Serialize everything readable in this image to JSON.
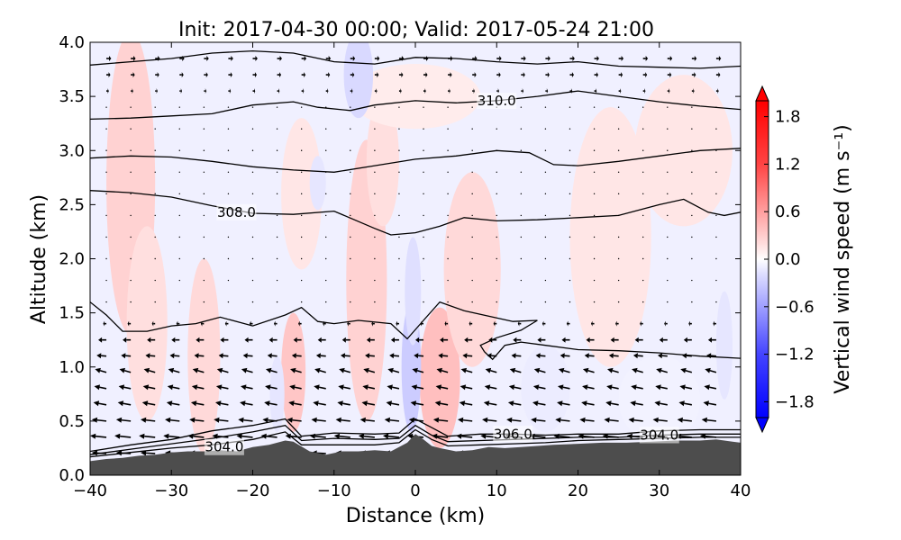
{
  "chart_data": {
    "type": "contour",
    "title": "Init: 2017-04-30 00:00; Valid: 2017-05-24 21:00",
    "xlabel": "Distance (km)",
    "ylabel": "Altitude (km)",
    "xlim": [
      -40,
      40
    ],
    "ylim": [
      0.0,
      4.0
    ],
    "x_ticks": [
      -40,
      -30,
      -20,
      -10,
      0,
      10,
      20,
      30,
      40
    ],
    "x_tick_labels": [
      "−40",
      "−30",
      "−20",
      "−10",
      "0",
      "10",
      "20",
      "30",
      "40"
    ],
    "y_ticks": [
      0.0,
      0.5,
      1.0,
      1.5,
      2.0,
      2.5,
      3.0,
      3.5,
      4.0
    ],
    "y_tick_labels": [
      "0.0",
      "0.5",
      "1.0",
      "1.5",
      "2.0",
      "2.5",
      "3.0",
      "3.5",
      "4.0"
    ],
    "colorbar": {
      "label": "Vertical wind speed (m s⁻¹)",
      "range": [
        -2.0,
        2.0
      ],
      "ticks": [
        1.8,
        1.2,
        0.6,
        0.0,
        -0.6,
        -1.2,
        -1.8
      ],
      "tick_labels": [
        "1.8",
        "1.2",
        "0.6",
        "0.0",
        "−0.6",
        "−1.2",
        "−1.8"
      ],
      "colormap": "bwr",
      "extend": "both"
    },
    "colors": {
      "terrain": "#4d4d4d",
      "positive": "#ff0000",
      "negative": "#0000ff",
      "neutral": "#ffffff"
    },
    "contour_labels": [
      {
        "text": "310.0",
        "x": 10,
        "y": 3.46
      },
      {
        "text": "308.0",
        "x": -22,
        "y": 2.43
      },
      {
        "text": "306.0",
        "x": 12,
        "y": 0.38
      },
      {
        "text": "304.0",
        "x": -23.5,
        "y": 0.26
      },
      {
        "text": "304.0",
        "x": 30,
        "y": 0.37
      }
    ],
    "isentropes": [
      {
        "level": "top",
        "points": [
          [
            -40,
            3.79
          ],
          [
            -35,
            3.82
          ],
          [
            -30,
            3.85
          ],
          [
            -25,
            3.9
          ],
          [
            -20,
            3.92
          ],
          [
            -15,
            3.9
          ],
          [
            -10,
            3.82
          ],
          [
            -5,
            3.8
          ],
          [
            0,
            3.86
          ],
          [
            5,
            3.85
          ],
          [
            10,
            3.82
          ],
          [
            15,
            3.8
          ],
          [
            20,
            3.82
          ],
          [
            25,
            3.78
          ],
          [
            30,
            3.77
          ],
          [
            35,
            3.76
          ],
          [
            40,
            3.78
          ]
        ]
      },
      {
        "level": "310.0",
        "points": [
          [
            -40,
            3.29
          ],
          [
            -35,
            3.3
          ],
          [
            -30,
            3.32
          ],
          [
            -25,
            3.34
          ],
          [
            -20,
            3.42
          ],
          [
            -15,
            3.45
          ],
          [
            -12,
            3.4
          ],
          [
            -8,
            3.37
          ],
          [
            -5,
            3.42
          ],
          [
            0,
            3.46
          ],
          [
            5,
            3.44
          ],
          [
            10,
            3.46
          ],
          [
            15,
            3.5
          ],
          [
            20,
            3.55
          ],
          [
            25,
            3.5
          ],
          [
            30,
            3.45
          ],
          [
            35,
            3.41
          ],
          [
            40,
            3.38
          ]
        ]
      },
      {
        "level": "309.0",
        "points": [
          [
            -40,
            2.93
          ],
          [
            -35,
            2.95
          ],
          [
            -30,
            2.94
          ],
          [
            -25,
            2.9
          ],
          [
            -20,
            2.85
          ],
          [
            -15,
            2.82
          ],
          [
            -10,
            2.8
          ],
          [
            -5,
            2.86
          ],
          [
            0,
            2.92
          ],
          [
            5,
            2.95
          ],
          [
            10,
            3.0
          ],
          [
            14,
            2.98
          ],
          [
            17,
            2.87
          ],
          [
            20,
            2.86
          ],
          [
            25,
            2.9
          ],
          [
            30,
            2.95
          ],
          [
            35,
            3.0
          ],
          [
            40,
            3.02
          ]
        ]
      },
      {
        "level": "308.0",
        "points": [
          [
            -40,
            2.63
          ],
          [
            -35,
            2.61
          ],
          [
            -30,
            2.57
          ],
          [
            -25,
            2.49
          ],
          [
            -20,
            2.42
          ],
          [
            -15,
            2.41
          ],
          [
            -10,
            2.44
          ],
          [
            -5,
            2.28
          ],
          [
            -3,
            2.22
          ],
          [
            0,
            2.24
          ],
          [
            3,
            2.3
          ],
          [
            6,
            2.38
          ],
          [
            10,
            2.35
          ],
          [
            15,
            2.36
          ],
          [
            20,
            2.38
          ],
          [
            25,
            2.4
          ],
          [
            30,
            2.5
          ],
          [
            33,
            2.55
          ],
          [
            36,
            2.43
          ],
          [
            38,
            2.4
          ],
          [
            40,
            2.43
          ]
        ]
      },
      {
        "level": "307.0",
        "points": [
          [
            -40,
            1.6
          ],
          [
            -38,
            1.48
          ],
          [
            -36,
            1.33
          ],
          [
            -33,
            1.33
          ],
          [
            -30,
            1.38
          ],
          [
            -27,
            1.4
          ],
          [
            -24,
            1.46
          ],
          [
            -20,
            1.38
          ],
          [
            -16,
            1.48
          ],
          [
            -14,
            1.55
          ],
          [
            -12,
            1.42
          ],
          [
            -10,
            1.4
          ],
          [
            -7,
            1.43
          ],
          [
            -3,
            1.4
          ],
          [
            -1,
            1.26
          ],
          [
            1,
            1.43
          ],
          [
            3,
            1.6
          ],
          [
            6,
            1.52
          ],
          [
            9,
            1.47
          ],
          [
            12,
            1.42
          ],
          [
            15,
            1.43
          ],
          [
            13,
            1.34
          ],
          [
            10,
            1.27
          ],
          [
            8,
            1.2
          ],
          [
            8.5,
            1.14
          ]
        ]
      },
      {
        "level": "306.5",
        "points": [
          [
            8.5,
            1.14
          ],
          [
            9.5,
            1.07
          ],
          [
            11,
            1.2
          ],
          [
            13,
            1.23
          ],
          [
            16,
            1.2
          ],
          [
            20,
            1.16
          ],
          [
            25,
            1.15
          ],
          [
            30,
            1.13
          ],
          [
            35,
            1.1
          ],
          [
            40,
            1.08
          ]
        ]
      },
      {
        "level": "306.0",
        "points": [
          [
            -40,
            0.22
          ],
          [
            -35,
            0.28
          ],
          [
            -30,
            0.33
          ],
          [
            -25,
            0.41
          ],
          [
            -20,
            0.46
          ],
          [
            -16,
            0.52
          ],
          [
            -14,
            0.36
          ],
          [
            -10,
            0.39
          ],
          [
            -5,
            0.38
          ],
          [
            -2,
            0.39
          ],
          [
            0,
            0.52
          ],
          [
            2,
            0.44
          ],
          [
            4,
            0.36
          ],
          [
            8,
            0.38
          ],
          [
            12,
            0.38
          ],
          [
            16,
            0.37
          ],
          [
            20,
            0.38
          ],
          [
            25,
            0.38
          ],
          [
            30,
            0.41
          ],
          [
            35,
            0.42
          ],
          [
            40,
            0.42
          ]
        ]
      },
      {
        "level": "305.0",
        "points": [
          [
            -40,
            0.19
          ],
          [
            -35,
            0.24
          ],
          [
            -30,
            0.29
          ],
          [
            -25,
            0.34
          ],
          [
            -20,
            0.4
          ],
          [
            -16,
            0.46
          ],
          [
            -14,
            0.32
          ],
          [
            -10,
            0.34
          ],
          [
            -5,
            0.33
          ],
          [
            -2,
            0.34
          ],
          [
            0,
            0.46
          ],
          [
            2,
            0.37
          ],
          [
            4,
            0.31
          ],
          [
            8,
            0.32
          ],
          [
            12,
            0.33
          ],
          [
            16,
            0.34
          ],
          [
            20,
            0.35
          ],
          [
            25,
            0.35
          ],
          [
            30,
            0.37
          ],
          [
            35,
            0.38
          ],
          [
            40,
            0.38
          ]
        ]
      },
      {
        "level": "304.0",
        "points": [
          [
            -40,
            0.17
          ],
          [
            -35,
            0.21
          ],
          [
            -30,
            0.25
          ],
          [
            -25,
            0.28
          ],
          [
            -20,
            0.33
          ],
          [
            -16,
            0.4
          ],
          [
            -14,
            0.28
          ],
          [
            -10,
            0.28
          ],
          [
            -5,
            0.28
          ],
          [
            -2,
            0.3
          ],
          [
            0,
            0.42
          ],
          [
            2,
            0.33
          ],
          [
            4,
            0.27
          ],
          [
            8,
            0.28
          ],
          [
            12,
            0.29
          ],
          [
            16,
            0.3
          ],
          [
            20,
            0.32
          ],
          [
            25,
            0.33
          ],
          [
            30,
            0.34
          ],
          [
            35,
            0.35
          ],
          [
            40,
            0.35
          ]
        ]
      }
    ],
    "terrain": [
      [
        -40,
        0.13
      ],
      [
        -38,
        0.15
      ],
      [
        -36,
        0.16
      ],
      [
        -34,
        0.18
      ],
      [
        -32,
        0.19
      ],
      [
        -30,
        0.21
      ],
      [
        -28,
        0.22
      ],
      [
        -26,
        0.22
      ],
      [
        -24,
        0.23
      ],
      [
        -22,
        0.22
      ],
      [
        -20,
        0.26
      ],
      [
        -18,
        0.28
      ],
      [
        -16,
        0.32
      ],
      [
        -15,
        0.31
      ],
      [
        -13,
        0.22
      ],
      [
        -11,
        0.19
      ],
      [
        -9,
        0.22
      ],
      [
        -7,
        0.22
      ],
      [
        -5,
        0.23
      ],
      [
        -3,
        0.22
      ],
      [
        -1,
        0.3
      ],
      [
        0,
        0.38
      ],
      [
        1,
        0.33
      ],
      [
        2,
        0.27
      ],
      [
        3,
        0.25
      ],
      [
        5,
        0.22
      ],
      [
        7,
        0.23
      ],
      [
        9,
        0.26
      ],
      [
        11,
        0.25
      ],
      [
        13,
        0.26
      ],
      [
        15,
        0.27
      ],
      [
        17,
        0.28
      ],
      [
        20,
        0.29
      ],
      [
        23,
        0.3
      ],
      [
        26,
        0.3
      ],
      [
        29,
        0.31
      ],
      [
        32,
        0.32
      ],
      [
        35,
        0.32
      ],
      [
        37,
        0.33
      ],
      [
        39,
        0.31
      ],
      [
        40,
        0.3
      ]
    ],
    "w_regions": [
      {
        "w": 0.35,
        "cx": -35,
        "cy": 2.7,
        "rx": 3,
        "ry": 1.4
      },
      {
        "w": 0.25,
        "cx": -33,
        "cy": 1.4,
        "rx": 2.5,
        "ry": 0.9
      },
      {
        "w": 0.3,
        "cx": -26,
        "cy": 1.1,
        "rx": 2.0,
        "ry": 0.9
      },
      {
        "w": 0.45,
        "cx": -15,
        "cy": 0.95,
        "rx": 1.5,
        "ry": 0.55
      },
      {
        "w": 0.2,
        "cx": -14,
        "cy": 2.6,
        "rx": 2.5,
        "ry": 0.7
      },
      {
        "w": 0.35,
        "cx": -6,
        "cy": 1.8,
        "rx": 2.5,
        "ry": 1.3
      },
      {
        "w": 0.25,
        "cx": -4,
        "cy": 2.9,
        "rx": 2.0,
        "ry": 0.6
      },
      {
        "w": 0.5,
        "cx": 3,
        "cy": 0.9,
        "rx": 2.5,
        "ry": 0.65
      },
      {
        "w": 0.3,
        "cx": 7,
        "cy": 1.9,
        "rx": 3.5,
        "ry": 0.9
      },
      {
        "w": 0.2,
        "cx": 24,
        "cy": 2.2,
        "rx": 5,
        "ry": 1.2
      },
      {
        "w": 0.15,
        "cx": 0,
        "cy": 3.5,
        "rx": 8,
        "ry": 0.3
      },
      {
        "w": 0.2,
        "cx": 33,
        "cy": 3.0,
        "rx": 6,
        "ry": 0.7
      },
      {
        "w": -0.4,
        "cx": -0.5,
        "cy": 1.0,
        "rx": 1.2,
        "ry": 0.6
      },
      {
        "w": -0.25,
        "cx": -0.3,
        "cy": 1.7,
        "rx": 1.0,
        "ry": 0.5
      },
      {
        "w": -0.3,
        "cx": -7,
        "cy": 3.7,
        "rx": 1.8,
        "ry": 0.4
      },
      {
        "w": -0.2,
        "cx": -12,
        "cy": 2.7,
        "rx": 1.0,
        "ry": 0.25
      },
      {
        "w": -0.2,
        "cx": -17,
        "cy": 0.75,
        "rx": 0.9,
        "ry": 0.35
      },
      {
        "w": -0.2,
        "cx": 38,
        "cy": 1.2,
        "rx": 1.0,
        "ry": 0.5
      },
      {
        "w": -0.15,
        "cx": 16,
        "cy": 0.8,
        "rx": 3,
        "ry": 0.4
      },
      {
        "w": -0.1,
        "cx": 30,
        "cy": 0.7,
        "rx": 5,
        "ry": 0.4
      }
    ],
    "wind_vectors": [
      {
        "y": 0.2,
        "u": -0.9,
        "v": 0.05
      },
      {
        "y": 0.35,
        "u": -1.0,
        "v": 0.1
      },
      {
        "y": 0.5,
        "u": -0.9,
        "v": 0.1
      },
      {
        "y": 0.65,
        "u": -0.8,
        "v": 0.15
      },
      {
        "y": 0.8,
        "u": -0.75,
        "v": 0.15
      },
      {
        "y": 0.95,
        "u": -0.7,
        "v": 0.2
      },
      {
        "y": 1.1,
        "u": -0.6,
        "v": 0.05
      },
      {
        "y": 1.25,
        "u": -0.5,
        "v": 0.0
      },
      {
        "y": 1.4,
        "u": -0.2,
        "v": 0.0
      },
      {
        "y": 1.6,
        "u": -0.1,
        "v": 0.0
      },
      {
        "y": 1.8,
        "u": 0.0,
        "v": 0.0
      },
      {
        "y": 2.0,
        "u": 0.0,
        "v": 0.0
      },
      {
        "y": 2.2,
        "u": 0.0,
        "v": 0.0
      },
      {
        "y": 2.4,
        "u": 0.0,
        "v": 0.0
      },
      {
        "y": 2.6,
        "u": 0.0,
        "v": 0.0
      },
      {
        "y": 2.8,
        "u": 0.0,
        "v": 0.0
      },
      {
        "y": 3.0,
        "u": 0.0,
        "v": 0.0
      },
      {
        "y": 3.2,
        "u": 0.0,
        "v": 0.0
      },
      {
        "y": 3.4,
        "u": 0.05,
        "v": 0.0
      },
      {
        "y": 3.55,
        "u": 0.15,
        "v": 0.0
      },
      {
        "y": 3.7,
        "u": 0.25,
        "v": 0.0
      },
      {
        "y": 3.85,
        "u": 0.3,
        "v": 0.0
      }
    ],
    "wind_x_positions": [
      -38,
      -35,
      -32,
      -29,
      -26,
      -23,
      -20,
      -17,
      -14,
      -11,
      -8,
      -5,
      -2,
      1,
      4,
      7,
      10,
      13,
      16,
      19,
      22,
      25,
      28,
      31,
      34,
      37
    ]
  }
}
